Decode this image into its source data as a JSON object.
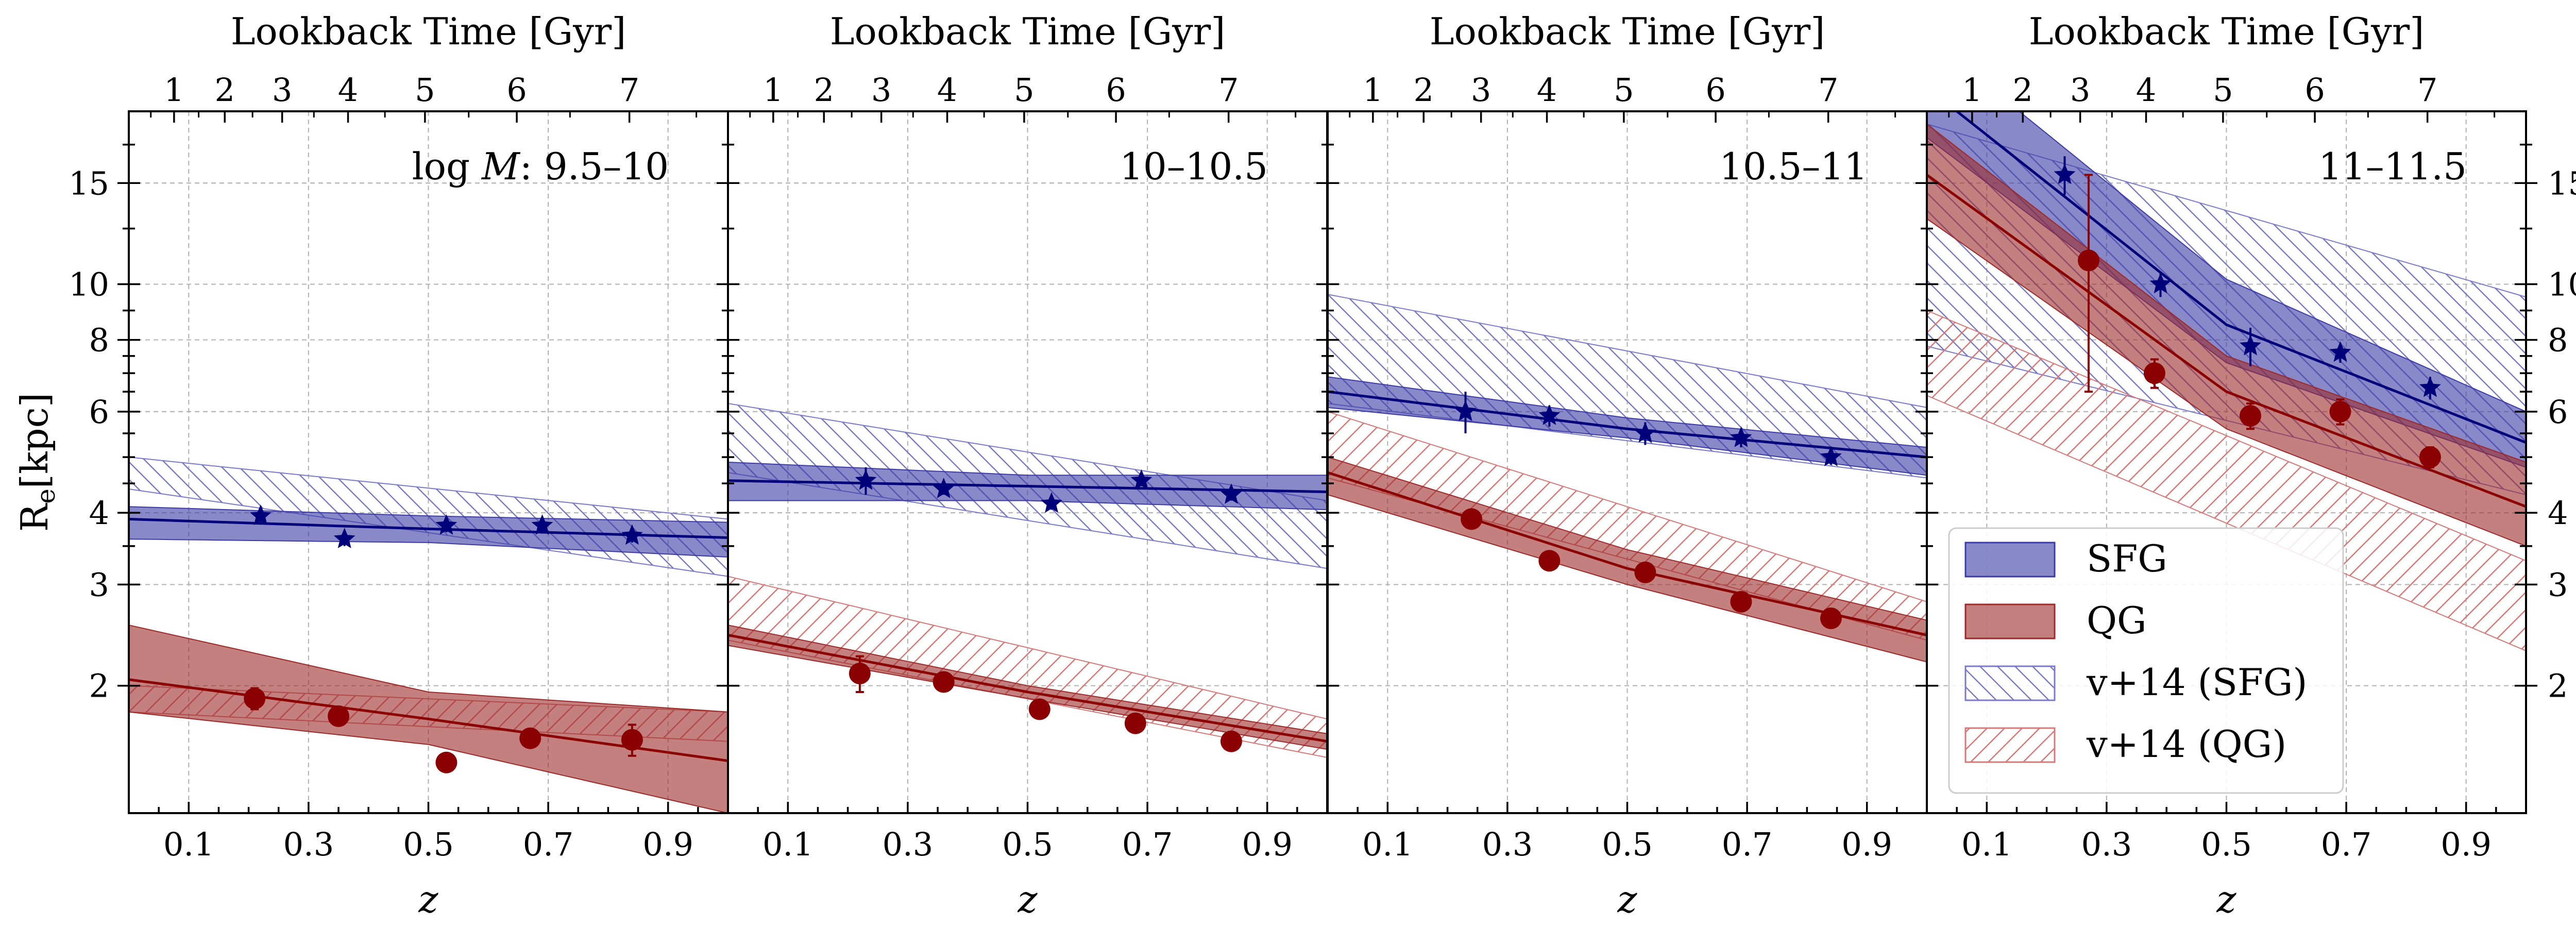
{
  "chart_data": {
    "type": "line",
    "y_axis_label": "R",
    "y_axis_label_sub": "e",
    "y_axis_label_unit": "[kpc]",
    "x_axis_label": "z",
    "top_axis_label": "Lookback Time [Gyr]",
    "xlim": [
      0.0,
      1.0
    ],
    "ylim": [
      1.2,
      20.0
    ],
    "yscale": "log",
    "grid": true,
    "x_ticks": [
      "0.1",
      "0.3",
      "0.5",
      "0.7",
      "0.9"
    ],
    "y_tick_labels": [
      "2",
      "3",
      "4",
      "6",
      "8",
      "10",
      "15"
    ],
    "top_ticks": [
      "1",
      "2",
      "3",
      "4",
      "5",
      "6",
      "7"
    ],
    "legend": {
      "placement": "lower-right of fourth panel",
      "entries": [
        {
          "label": "SFG",
          "style": "filled-band",
          "color": "#3b3ba6"
        },
        {
          "label": "QG",
          "style": "filled-band",
          "color": "#9c2a2a"
        },
        {
          "label": "v+14 (SFG)",
          "style": "hatched-band",
          "color": "#7a7acb"
        },
        {
          "label": "v+14 (QG)",
          "style": "hatched-band",
          "color": "#d47a7a"
        }
      ]
    },
    "colors": {
      "sfg_line": "#00007a",
      "sfg_band": "#3b3ba6",
      "qg_line": "#8b0000",
      "qg_band": "#9c2a2a",
      "v14_sfg": "#7a7acb",
      "v14_qg": "#d47a7a"
    },
    "panels": [
      {
        "label": "log M: 9.5–10",
        "label_math_prefix": "log",
        "label_math_var": "M",
        "label_range": ": 9.5–10",
        "sfg_fit": {
          "x": [
            0,
            0.5,
            1.0
          ],
          "y": [
            3.9,
            3.75,
            3.62
          ],
          "lo": [
            3.6,
            3.55,
            3.35
          ],
          "hi": [
            4.1,
            3.95,
            3.85
          ]
        },
        "qg_fit": {
          "x": [
            0,
            0.5,
            1.0
          ],
          "y": [
            2.05,
            1.75,
            1.48
          ],
          "lo": [
            1.8,
            1.58,
            1.2
          ],
          "hi": [
            2.55,
            1.95,
            1.8
          ]
        },
        "v14_sfg": {
          "x": [
            0,
            1.0
          ],
          "lo": [
            4.4,
            3.1
          ],
          "hi": [
            5.0,
            3.9
          ]
        },
        "v14_qg": {
          "x": [
            0,
            1.0
          ],
          "lo": [
            1.8,
            1.6
          ],
          "hi": [
            2.0,
            1.8
          ]
        },
        "sfg_points": [
          {
            "x": 0.22,
            "y": 3.95,
            "err": 0.12
          },
          {
            "x": 0.36,
            "y": 3.6,
            "err": 0.1
          },
          {
            "x": 0.53,
            "y": 3.8,
            "err": 0.1
          },
          {
            "x": 0.69,
            "y": 3.8,
            "err": 0.12
          },
          {
            "x": 0.84,
            "y": 3.65,
            "err": 0.1
          }
        ],
        "qg_points": [
          {
            "x": 0.21,
            "y": 1.9,
            "err": 0.08
          },
          {
            "x": 0.35,
            "y": 1.77,
            "err": 0.05
          },
          {
            "x": 0.53,
            "y": 1.47,
            "err": 0.0
          },
          {
            "x": 0.67,
            "y": 1.62,
            "err": 0.05
          },
          {
            "x": 0.84,
            "y": 1.61,
            "err": 0.1
          }
        ]
      },
      {
        "label": "10–10.5",
        "sfg_fit": {
          "x": [
            0,
            0.5,
            1.0
          ],
          "y": [
            4.55,
            4.45,
            4.35
          ],
          "lo": [
            4.2,
            4.2,
            4.05
          ],
          "hi": [
            4.9,
            4.65,
            4.65
          ]
        },
        "qg_fit": {
          "x": [
            0,
            0.5,
            1.0
          ],
          "y": [
            2.45,
            1.95,
            1.6
          ],
          "lo": [
            2.35,
            1.9,
            1.55
          ],
          "hi": [
            2.55,
            2.0,
            1.65
          ]
        },
        "v14_sfg": {
          "x": [
            0,
            1.0
          ],
          "lo": [
            4.7,
            3.2
          ],
          "hi": [
            6.2,
            4.2
          ]
        },
        "v14_qg": {
          "x": [
            0,
            1.0
          ],
          "lo": [
            2.4,
            1.5
          ],
          "hi": [
            3.1,
            1.75
          ]
        },
        "sfg_points": [
          {
            "x": 0.23,
            "y": 4.55,
            "err": 0.25
          },
          {
            "x": 0.36,
            "y": 4.4,
            "err": 0.1
          },
          {
            "x": 0.54,
            "y": 4.15,
            "err": 0.1
          },
          {
            "x": 0.69,
            "y": 4.55,
            "err": 0.1
          },
          {
            "x": 0.84,
            "y": 4.3,
            "err": 0.1
          }
        ],
        "qg_points": [
          {
            "x": 0.22,
            "y": 2.1,
            "err": 0.15
          },
          {
            "x": 0.36,
            "y": 2.03,
            "err": 0.05
          },
          {
            "x": 0.52,
            "y": 1.82,
            "err": 0.05
          },
          {
            "x": 0.68,
            "y": 1.72,
            "err": 0.05
          },
          {
            "x": 0.84,
            "y": 1.6,
            "err": 0.05
          }
        ]
      },
      {
        "label": "10.5–11",
        "sfg_fit": {
          "x": [
            0,
            0.5,
            1.0
          ],
          "y": [
            6.5,
            5.6,
            5.0
          ],
          "lo": [
            6.1,
            5.4,
            4.65
          ],
          "hi": [
            6.9,
            5.85,
            5.2
          ]
        },
        "qg_fit": {
          "x": [
            0,
            0.5,
            1.0
          ],
          "y": [
            4.7,
            3.2,
            2.45
          ],
          "lo": [
            4.3,
            3.0,
            2.2
          ],
          "hi": [
            5.0,
            3.45,
            2.6
          ]
        },
        "v14_sfg": {
          "x": [
            0,
            1.0
          ],
          "lo": [
            6.2,
            4.6
          ],
          "hi": [
            9.6,
            6.1
          ]
        },
        "v14_qg": {
          "x": [
            0,
            1.0
          ],
          "lo": [
            4.6,
            2.4
          ],
          "hi": [
            6.0,
            2.8
          ]
        },
        "sfg_points": [
          {
            "x": 0.23,
            "y": 6.0,
            "err": 0.5
          },
          {
            "x": 0.37,
            "y": 5.9,
            "err": 0.25
          },
          {
            "x": 0.53,
            "y": 5.5,
            "err": 0.25
          },
          {
            "x": 0.69,
            "y": 5.4,
            "err": 0.2
          },
          {
            "x": 0.84,
            "y": 5.0,
            "err": 0.15
          }
        ],
        "qg_points": [
          {
            "x": 0.24,
            "y": 3.9,
            "err": 0.1
          },
          {
            "x": 0.37,
            "y": 3.3,
            "err": 0.1
          },
          {
            "x": 0.53,
            "y": 3.15,
            "err": 0.08
          },
          {
            "x": 0.69,
            "y": 2.8,
            "err": 0.08
          },
          {
            "x": 0.84,
            "y": 2.62,
            "err": 0.08
          }
        ]
      },
      {
        "label": "11–11.5",
        "sfg_fit": {
          "x": [
            0,
            0.5,
            1.0
          ],
          "y": [
            22.0,
            8.5,
            5.3
          ],
          "lo": [
            18.0,
            7.3,
            4.8
          ],
          "hi": [
            27.0,
            10.2,
            6.0
          ]
        },
        "qg_fit": {
          "x": [
            0,
            0.5,
            1.0
          ],
          "y": [
            15.5,
            6.5,
            4.1
          ],
          "lo": [
            13.0,
            5.6,
            3.5
          ],
          "hi": [
            19.0,
            7.5,
            4.9
          ]
        },
        "v14_sfg": {
          "x": [
            0,
            1.0
          ],
          "lo": [
            7.8,
            4.3
          ],
          "hi": [
            19.0,
            9.5
          ]
        },
        "v14_qg": {
          "x": [
            0,
            1.0
          ],
          "lo": [
            6.4,
            2.3
          ],
          "hi": [
            9.0,
            3.3
          ]
        },
        "sfg_points": [
          {
            "x": 0.23,
            "y": 15.5,
            "err": 1.2
          },
          {
            "x": 0.39,
            "y": 10.0,
            "err": 0.5
          },
          {
            "x": 0.54,
            "y": 7.8,
            "err": 0.6
          },
          {
            "x": 0.69,
            "y": 7.6,
            "err": 0.3
          },
          {
            "x": 0.84,
            "y": 6.6,
            "err": 0.3
          }
        ],
        "qg_points": [
          {
            "x": 0.27,
            "y": 11.0,
            "err": 4.5
          },
          {
            "x": 0.38,
            "y": 7.0,
            "err": 0.4
          },
          {
            "x": 0.54,
            "y": 5.9,
            "err": 0.3
          },
          {
            "x": 0.69,
            "y": 6.0,
            "err": 0.3
          },
          {
            "x": 0.84,
            "y": 5.0,
            "err": 0.2
          }
        ]
      }
    ]
  }
}
